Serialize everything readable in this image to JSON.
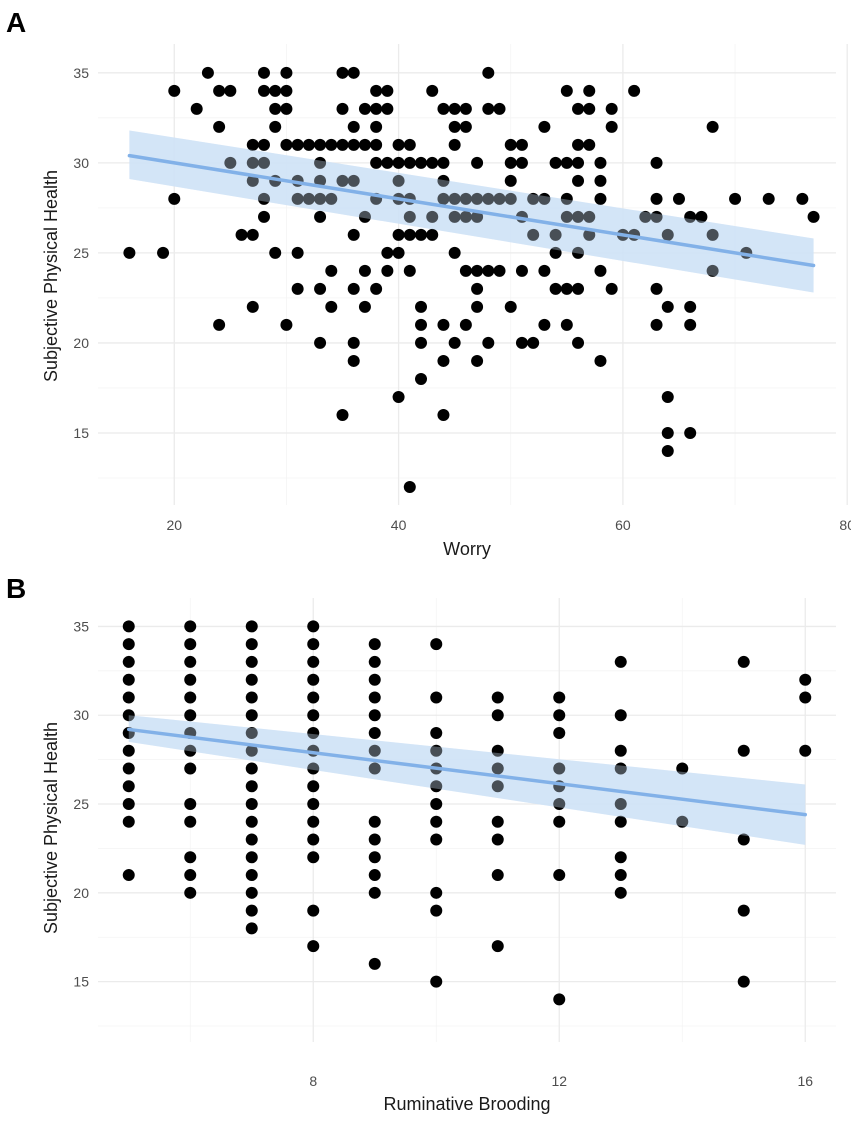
{
  "chart_data": [
    {
      "type": "scatter",
      "panel_label": "A",
      "xlabel": "Worry",
      "ylabel": "Subjective Physical Health",
      "xlim": [
        13.2,
        79.0
      ],
      "ylim": [
        11.0,
        36.6
      ],
      "xticks": [
        20,
        40,
        60,
        80
      ],
      "yticks": [
        15,
        20,
        25,
        30,
        35
      ],
      "point_color": "#000000",
      "fit_color": "#82b1e8",
      "band_color": "#cfe2f7",
      "fit": {
        "x": [
          16,
          77
        ],
        "y": [
          30.4,
          24.3
        ],
        "lower": [
          29.1,
          22.8
        ],
        "upper": [
          31.8,
          25.8
        ]
      },
      "points": [
        [
          16,
          25
        ],
        [
          19,
          25
        ],
        [
          20,
          34
        ],
        [
          20,
          28
        ],
        [
          22,
          33
        ],
        [
          23,
          35
        ],
        [
          24,
          34
        ],
        [
          24,
          32
        ],
        [
          24,
          21
        ],
        [
          25,
          34
        ],
        [
          25,
          30
        ],
        [
          26,
          26
        ],
        [
          27,
          30
        ],
        [
          27,
          29
        ],
        [
          27,
          26
        ],
        [
          27,
          22
        ],
        [
          27,
          31
        ],
        [
          28,
          35
        ],
        [
          28,
          34
        ],
        [
          28,
          31
        ],
        [
          28,
          30
        ],
        [
          28,
          28
        ],
        [
          28,
          27
        ],
        [
          29,
          34
        ],
        [
          29,
          33
        ],
        [
          29,
          32
        ],
        [
          29,
          29
        ],
        [
          29,
          25
        ],
        [
          30,
          35
        ],
        [
          30,
          34
        ],
        [
          30,
          33
        ],
        [
          30,
          31
        ],
        [
          30,
          21
        ],
        [
          31,
          31
        ],
        [
          31,
          29
        ],
        [
          31,
          28
        ],
        [
          31,
          25
        ],
        [
          31,
          23
        ],
        [
          32,
          31
        ],
        [
          32,
          28
        ],
        [
          33,
          31
        ],
        [
          33,
          30
        ],
        [
          33,
          29
        ],
        [
          33,
          28
        ],
        [
          33,
          27
        ],
        [
          33,
          23
        ],
        [
          33,
          20
        ],
        [
          34,
          31
        ],
        [
          34,
          28
        ],
        [
          34,
          24
        ],
        [
          34,
          22
        ],
        [
          35,
          33
        ],
        [
          35,
          31
        ],
        [
          35,
          35
        ],
        [
          35,
          16
        ],
        [
          35,
          29
        ],
        [
          36,
          35
        ],
        [
          36,
          32
        ],
        [
          36,
          31
        ],
        [
          36,
          29
        ],
        [
          36,
          26
        ],
        [
          36,
          23
        ],
        [
          36,
          20
        ],
        [
          36,
          19
        ],
        [
          37,
          33
        ],
        [
          37,
          31
        ],
        [
          37,
          27
        ],
        [
          37,
          24
        ],
        [
          37,
          22
        ],
        [
          38,
          34
        ],
        [
          38,
          33
        ],
        [
          38,
          32
        ],
        [
          38,
          31
        ],
        [
          38,
          30
        ],
        [
          38,
          28
        ],
        [
          38,
          23
        ],
        [
          39,
          34
        ],
        [
          39,
          33
        ],
        [
          39,
          25
        ],
        [
          39,
          24
        ],
        [
          39,
          30
        ],
        [
          40,
          31
        ],
        [
          40,
          30
        ],
        [
          40,
          29
        ],
        [
          40,
          28
        ],
        [
          40,
          26
        ],
        [
          40,
          25
        ],
        [
          40,
          17
        ],
        [
          41,
          31
        ],
        [
          41,
          30
        ],
        [
          41,
          28
        ],
        [
          41,
          27
        ],
        [
          41,
          26
        ],
        [
          41,
          24
        ],
        [
          41,
          12
        ],
        [
          42,
          30
        ],
        [
          42,
          26
        ],
        [
          42,
          22
        ],
        [
          42,
          21
        ],
        [
          42,
          20
        ],
        [
          42,
          18
        ],
        [
          43,
          34
        ],
        [
          43,
          30
        ],
        [
          43,
          27
        ],
        [
          43,
          26
        ],
        [
          44,
          33
        ],
        [
          44,
          30
        ],
        [
          44,
          29
        ],
        [
          44,
          28
        ],
        [
          44,
          21
        ],
        [
          44,
          19
        ],
        [
          44,
          16
        ],
        [
          45,
          33
        ],
        [
          45,
          32
        ],
        [
          45,
          31
        ],
        [
          45,
          28
        ],
        [
          45,
          27
        ],
        [
          45,
          25
        ],
        [
          45,
          20
        ],
        [
          46,
          33
        ],
        [
          46,
          32
        ],
        [
          46,
          28
        ],
        [
          46,
          27
        ],
        [
          46,
          24
        ],
        [
          46,
          21
        ],
        [
          47,
          30
        ],
        [
          47,
          28
        ],
        [
          47,
          27
        ],
        [
          47,
          24
        ],
        [
          47,
          23
        ],
        [
          47,
          22
        ],
        [
          47,
          19
        ],
        [
          48,
          35
        ],
        [
          48,
          33
        ],
        [
          48,
          28
        ],
        [
          48,
          24
        ],
        [
          48,
          20
        ],
        [
          49,
          33
        ],
        [
          49,
          28
        ],
        [
          49,
          24
        ],
        [
          50,
          31
        ],
        [
          50,
          30
        ],
        [
          50,
          29
        ],
        [
          50,
          28
        ],
        [
          50,
          22
        ],
        [
          51,
          31
        ],
        [
          51,
          30
        ],
        [
          51,
          27
        ],
        [
          51,
          24
        ],
        [
          51,
          20
        ],
        [
          52,
          28
        ],
        [
          52,
          26
        ],
        [
          52,
          20
        ],
        [
          53,
          32
        ],
        [
          53,
          28
        ],
        [
          53,
          24
        ],
        [
          53,
          21
        ],
        [
          54,
          30
        ],
        [
          54,
          26
        ],
        [
          54,
          25
        ],
        [
          54,
          23
        ],
        [
          55,
          34
        ],
        [
          55,
          30
        ],
        [
          55,
          28
        ],
        [
          55,
          27
        ],
        [
          55,
          23
        ],
        [
          55,
          21
        ],
        [
          56,
          33
        ],
        [
          56,
          31
        ],
        [
          56,
          30
        ],
        [
          56,
          29
        ],
        [
          56,
          27
        ],
        [
          56,
          25
        ],
        [
          56,
          23
        ],
        [
          56,
          20
        ],
        [
          57,
          34
        ],
        [
          57,
          33
        ],
        [
          57,
          31
        ],
        [
          57,
          27
        ],
        [
          57,
          26
        ],
        [
          58,
          30
        ],
        [
          58,
          29
        ],
        [
          58,
          28
        ],
        [
          58,
          24
        ],
        [
          58,
          19
        ],
        [
          59,
          33
        ],
        [
          59,
          32
        ],
        [
          59,
          23
        ],
        [
          60,
          26
        ],
        [
          61,
          34
        ],
        [
          61,
          26
        ],
        [
          62,
          27
        ],
        [
          63,
          30
        ],
        [
          63,
          28
        ],
        [
          63,
          27
        ],
        [
          63,
          23
        ],
        [
          63,
          21
        ],
        [
          64,
          26
        ],
        [
          64,
          22
        ],
        [
          64,
          17
        ],
        [
          64,
          15
        ],
        [
          64,
          14
        ],
        [
          65,
          28
        ],
        [
          66,
          27
        ],
        [
          66,
          22
        ],
        [
          66,
          21
        ],
        [
          66,
          15
        ],
        [
          67,
          27
        ],
        [
          68,
          32
        ],
        [
          68,
          26
        ],
        [
          68,
          24
        ],
        [
          70,
          28
        ],
        [
          71,
          25
        ],
        [
          73,
          28
        ],
        [
          76,
          28
        ],
        [
          77,
          27
        ]
      ]
    },
    {
      "type": "scatter",
      "panel_label": "B",
      "xlabel": "Ruminative Brooding",
      "ylabel": "Subjective Physical Health",
      "xlim": [
        4.5,
        16.5
      ],
      "ylim": [
        11.6,
        36.6
      ],
      "xticks": [
        8,
        12,
        16
      ],
      "yticks": [
        15,
        20,
        25,
        30,
        35
      ],
      "point_color": "#000000",
      "fit_color": "#82b1e8",
      "band_color": "#cfe2f7",
      "fit": {
        "x": [
          5,
          16
        ],
        "y": [
          29.2,
          24.4
        ],
        "lower": [
          28.5,
          22.7
        ],
        "upper": [
          30.0,
          26.1
        ]
      },
      "points": [
        [
          5,
          35
        ],
        [
          5,
          34
        ],
        [
          5,
          33
        ],
        [
          5,
          32
        ],
        [
          5,
          31
        ],
        [
          5,
          30
        ],
        [
          5,
          29
        ],
        [
          5,
          28
        ],
        [
          5,
          27
        ],
        [
          5,
          26
        ],
        [
          5,
          25
        ],
        [
          5,
          24
        ],
        [
          5,
          21
        ],
        [
          6,
          35
        ],
        [
          6,
          34
        ],
        [
          6,
          33
        ],
        [
          6,
          32
        ],
        [
          6,
          31
        ],
        [
          6,
          30
        ],
        [
          6,
          29
        ],
        [
          6,
          28
        ],
        [
          6,
          27
        ],
        [
          6,
          25
        ],
        [
          6,
          24
        ],
        [
          6,
          22
        ],
        [
          6,
          21
        ],
        [
          6,
          20
        ],
        [
          7,
          35
        ],
        [
          7,
          34
        ],
        [
          7,
          33
        ],
        [
          7,
          32
        ],
        [
          7,
          31
        ],
        [
          7,
          30
        ],
        [
          7,
          29
        ],
        [
          7,
          28
        ],
        [
          7,
          27
        ],
        [
          7,
          26
        ],
        [
          7,
          25
        ],
        [
          7,
          24
        ],
        [
          7,
          23
        ],
        [
          7,
          22
        ],
        [
          7,
          21
        ],
        [
          7,
          20
        ],
        [
          7,
          19
        ],
        [
          7,
          18
        ],
        [
          8,
          35
        ],
        [
          8,
          34
        ],
        [
          8,
          33
        ],
        [
          8,
          32
        ],
        [
          8,
          31
        ],
        [
          8,
          30
        ],
        [
          8,
          29
        ],
        [
          8,
          28
        ],
        [
          8,
          27
        ],
        [
          8,
          26
        ],
        [
          8,
          25
        ],
        [
          8,
          24
        ],
        [
          8,
          23
        ],
        [
          8,
          22
        ],
        [
          8,
          19
        ],
        [
          8,
          17
        ],
        [
          9,
          34
        ],
        [
          9,
          33
        ],
        [
          9,
          32
        ],
        [
          9,
          31
        ],
        [
          9,
          30
        ],
        [
          9,
          29
        ],
        [
          9,
          28
        ],
        [
          9,
          27
        ],
        [
          9,
          24
        ],
        [
          9,
          23
        ],
        [
          9,
          22
        ],
        [
          9,
          21
        ],
        [
          9,
          20
        ],
        [
          9,
          16
        ],
        [
          10,
          34
        ],
        [
          10,
          31
        ],
        [
          10,
          29
        ],
        [
          10,
          28
        ],
        [
          10,
          27
        ],
        [
          10,
          26
        ],
        [
          10,
          25
        ],
        [
          10,
          24
        ],
        [
          10,
          23
        ],
        [
          10,
          20
        ],
        [
          10,
          19
        ],
        [
          10,
          15
        ],
        [
          11,
          31
        ],
        [
          11,
          30
        ],
        [
          11,
          28
        ],
        [
          11,
          27
        ],
        [
          11,
          26
        ],
        [
          11,
          24
        ],
        [
          11,
          23
        ],
        [
          11,
          21
        ],
        [
          11,
          17
        ],
        [
          12,
          31
        ],
        [
          12,
          30
        ],
        [
          12,
          29
        ],
        [
          12,
          27
        ],
        [
          12,
          26
        ],
        [
          12,
          25
        ],
        [
          12,
          24
        ],
        [
          12,
          21
        ],
        [
          12,
          14
        ],
        [
          13,
          33
        ],
        [
          13,
          30
        ],
        [
          13,
          28
        ],
        [
          13,
          27
        ],
        [
          13,
          25
        ],
        [
          13,
          24
        ],
        [
          13,
          22
        ],
        [
          13,
          21
        ],
        [
          13,
          20
        ],
        [
          14,
          27
        ],
        [
          14,
          24
        ],
        [
          15,
          33
        ],
        [
          15,
          28
        ],
        [
          15,
          23
        ],
        [
          15,
          19
        ],
        [
          15,
          15
        ],
        [
          16,
          32
        ],
        [
          16,
          31
        ],
        [
          16,
          28
        ]
      ]
    }
  ]
}
